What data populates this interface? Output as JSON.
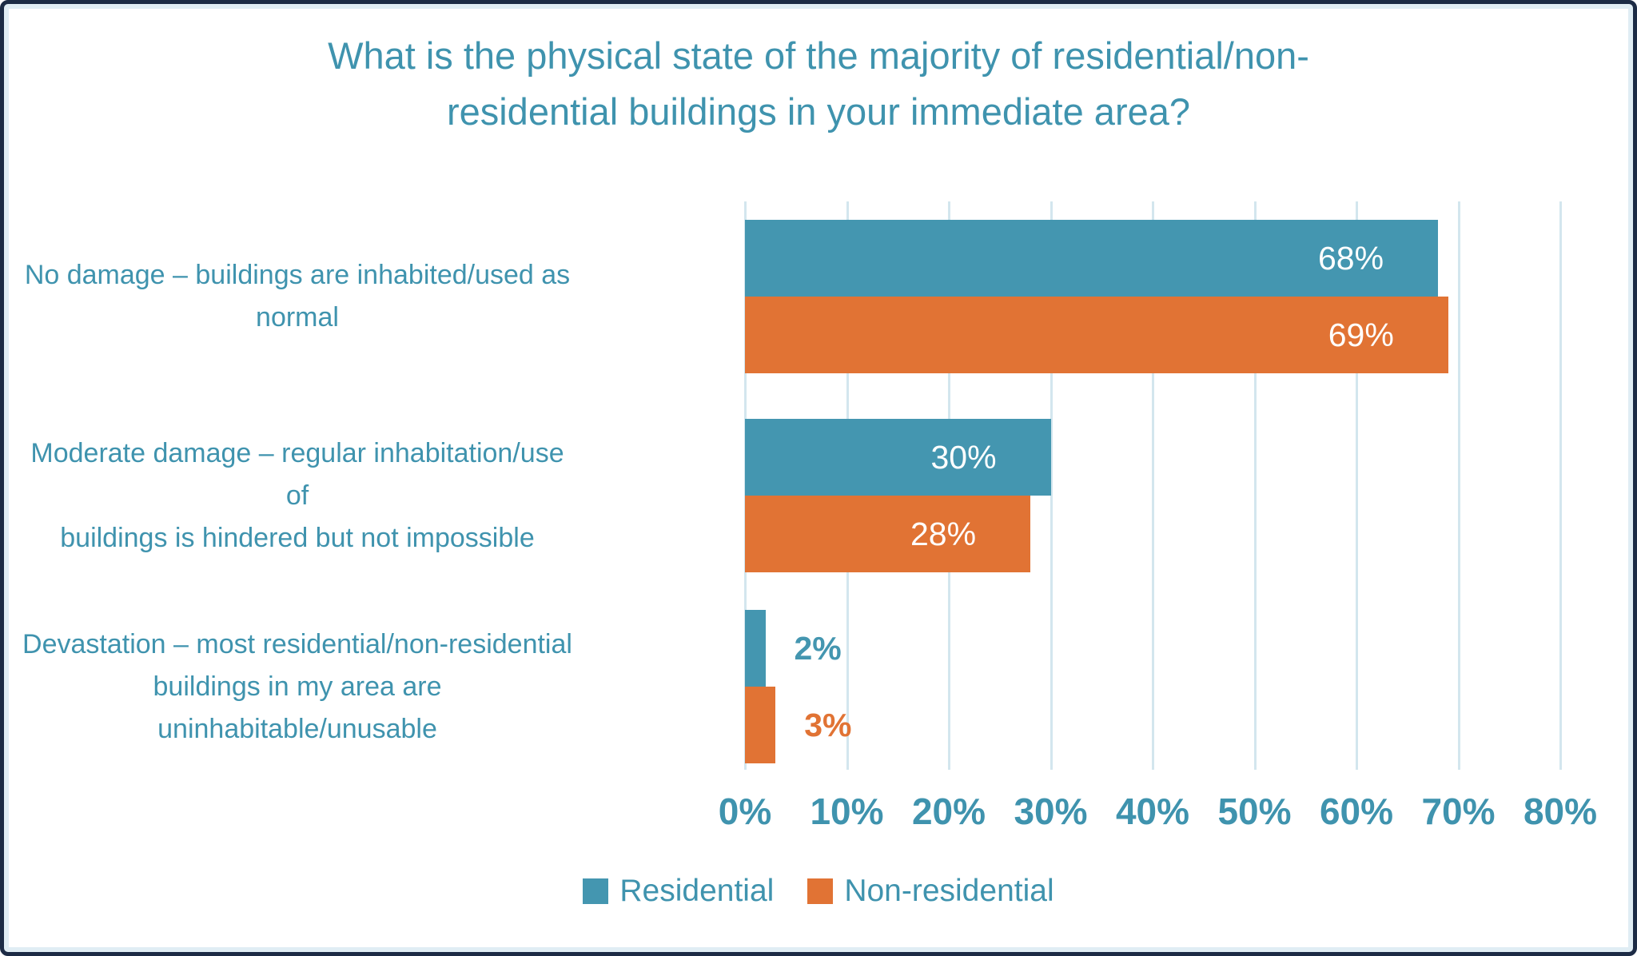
{
  "title": {
    "lines": [
      "What is the physical state of the majority of residential/non-",
      "residential buildings in your immediate area?"
    ]
  },
  "colors": {
    "residential": "#4496b0",
    "non_residential": "#e17334",
    "text_teal": "#3f93ae",
    "gridline": "#d3e6ee",
    "frame_border": "#1c2b45",
    "frame_inner_glow": "#e0edf4",
    "bar_label_inside": "#ffffff"
  },
  "chart_data": {
    "type": "bar",
    "orientation": "horizontal",
    "title": "What is the physical state of the majority of residential/non-residential buildings in your immediate area?",
    "categories": [
      "No damage – buildings are inhabited/used as normal",
      "Moderate damage – regular inhabitation/use of buildings is hindered but not impossible",
      "Devastation – most residential/non-residential buildings in my area are uninhabitable/unusable"
    ],
    "category_label_lines": [
      [
        "No damage – buildings are inhabited/used as",
        "normal"
      ],
      [
        "Moderate damage – regular inhabitation/use of",
        "buildings is hindered but not impossible"
      ],
      [
        "Devastation – most residential/non-residential",
        "buildings in my area are uninhabitable/unusable"
      ]
    ],
    "series": [
      {
        "name": "Residential",
        "color": "#4496b0",
        "values": [
          68,
          30,
          2
        ],
        "labels": [
          "68%",
          "30%",
          "2%"
        ]
      },
      {
        "name": "Non-residential",
        "color": "#e17334",
        "values": [
          69,
          28,
          3
        ],
        "labels": [
          "69%",
          "28%",
          "3%"
        ]
      }
    ],
    "x_axis": {
      "min": 0,
      "max": 80,
      "step": 10,
      "ticks": [
        "0%",
        "10%",
        "20%",
        "30%",
        "40%",
        "50%",
        "60%",
        "70%",
        "80%"
      ]
    },
    "grid": "vertical",
    "legend_position": "bottom",
    "value_label_format": "percent"
  }
}
